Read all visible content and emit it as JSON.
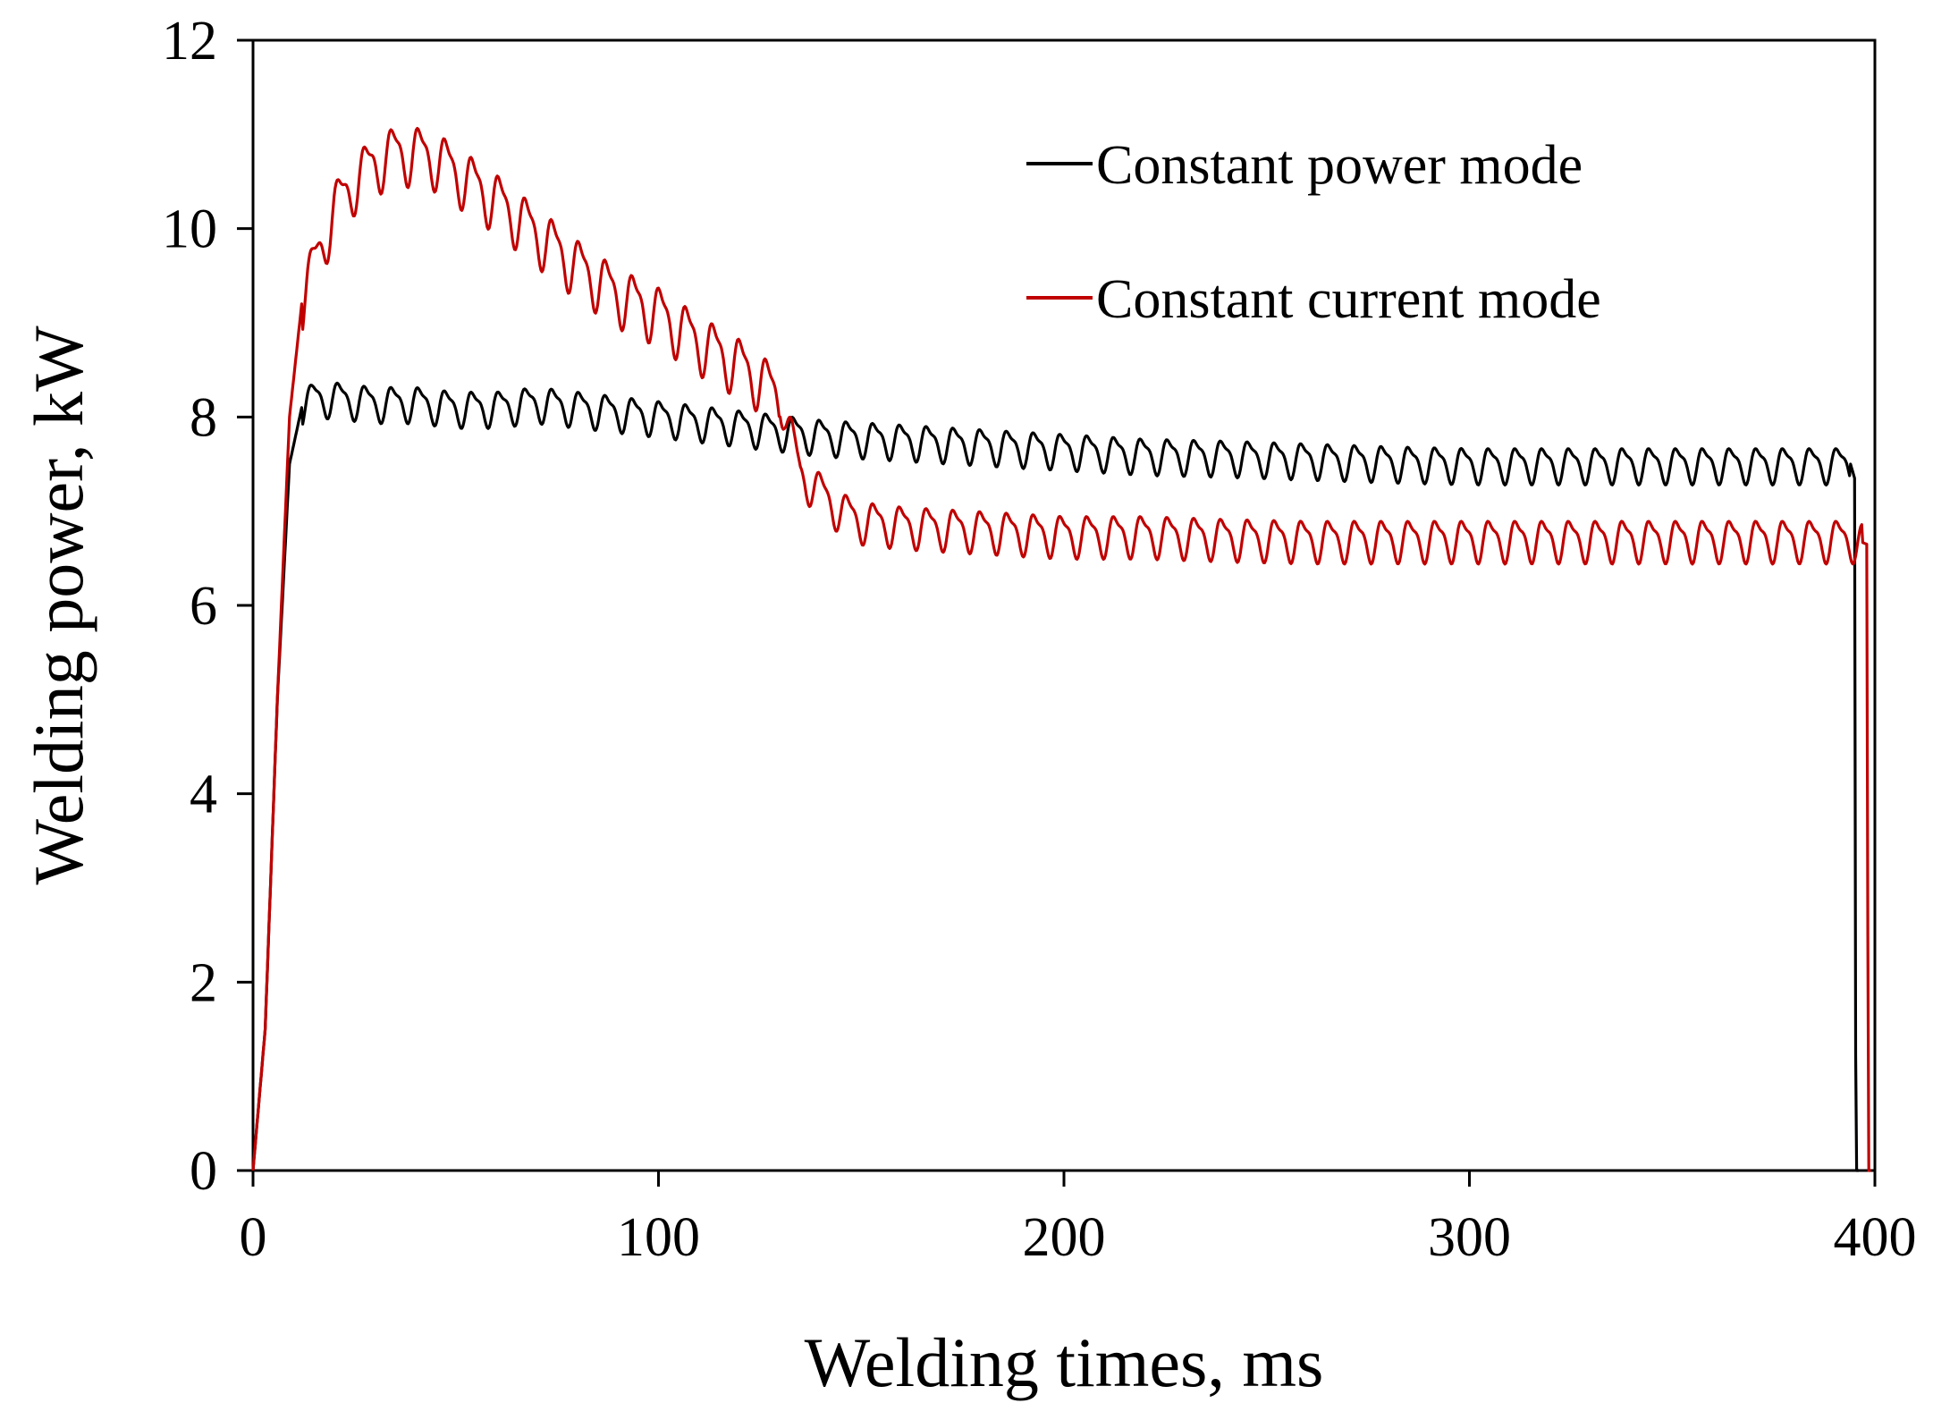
{
  "chart_data": {
    "type": "line",
    "title": "",
    "xlabel": "Welding times, ms",
    "ylabel": "Welding power, kW",
    "xlim": [
      0,
      400
    ],
    "ylim": [
      0,
      12
    ],
    "xticks": [
      0,
      100,
      200,
      300,
      400
    ],
    "yticks": [
      0,
      2,
      4,
      6,
      8,
      10,
      12
    ],
    "xtick_labels": [
      "0",
      "100",
      "200",
      "300",
      "400"
    ],
    "ytick_labels": [
      "0",
      "2",
      "4",
      "6",
      "8",
      "10",
      "12"
    ],
    "grid": false,
    "legend_position": "top-right",
    "series": [
      {
        "name": "Constant power mode",
        "color": "#000000",
        "x": [
          0,
          3,
          6,
          9,
          12,
          15,
          20,
          30,
          40,
          50,
          60,
          70,
          80,
          90,
          100,
          110,
          120,
          130,
          140,
          160,
          180,
          200,
          220,
          240,
          260,
          280,
          300,
          320,
          340,
          360,
          380,
          394,
          395,
          395.3,
          396
        ],
        "y": [
          0,
          1.5,
          5.0,
          7.5,
          8.1,
          8.2,
          8.2,
          8.15,
          8.15,
          8.1,
          8.1,
          8.15,
          8.1,
          8.05,
          8.0,
          7.95,
          7.9,
          7.85,
          7.8,
          7.75,
          7.7,
          7.65,
          7.6,
          7.58,
          7.55,
          7.52,
          7.5,
          7.5,
          7.5,
          7.5,
          7.5,
          7.5,
          7.35,
          0,
          0
        ],
        "ripple_amplitude": 0.17
      },
      {
        "name": "Constant current mode",
        "color": "#c00000",
        "x": [
          0,
          3,
          6,
          9,
          12,
          15,
          20,
          25,
          30,
          35,
          40,
          45,
          50,
          55,
          60,
          70,
          80,
          90,
          100,
          110,
          120,
          125,
          130,
          131,
          135,
          140,
          145,
          150,
          160,
          180,
          200,
          220,
          240,
          260,
          280,
          300,
          320,
          340,
          360,
          380,
          395,
          398,
          398.4,
          399
        ],
        "y": [
          0,
          1.5,
          5.0,
          8.0,
          9.2,
          9.6,
          10.2,
          10.5,
          10.7,
          10.8,
          10.8,
          10.75,
          10.6,
          10.45,
          10.3,
          9.95,
          9.6,
          9.3,
          9.1,
          8.8,
          8.55,
          8.4,
          8.2,
          8.1,
          7.4,
          7.2,
          7.0,
          6.9,
          6.85,
          6.8,
          6.75,
          6.75,
          6.72,
          6.7,
          6.7,
          6.7,
          6.7,
          6.7,
          6.7,
          6.7,
          6.7,
          6.65,
          0,
          0
        ],
        "ripple_amplitude": 0.2
      }
    ]
  }
}
